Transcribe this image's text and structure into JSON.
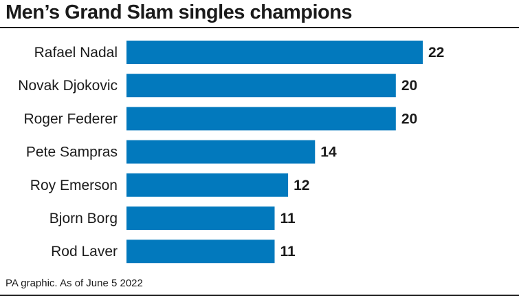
{
  "chart_data": {
    "type": "bar",
    "orientation": "horizontal",
    "title": "Men’s Grand Slam singles champions",
    "categories": [
      "Rafael Nadal",
      "Novak Djokovic",
      "Roger Federer",
      "Pete Sampras",
      "Roy Emerson",
      "Bjorn Borg",
      "Rod Laver"
    ],
    "values": [
      22,
      20,
      20,
      14,
      12,
      11,
      11
    ],
    "xlabel": "",
    "ylabel": "",
    "xlim": [
      0,
      22
    ],
    "grid": false,
    "legend": "none",
    "bar_color": "#0279bd",
    "source": "PA graphic. As of June 5 2022"
  }
}
